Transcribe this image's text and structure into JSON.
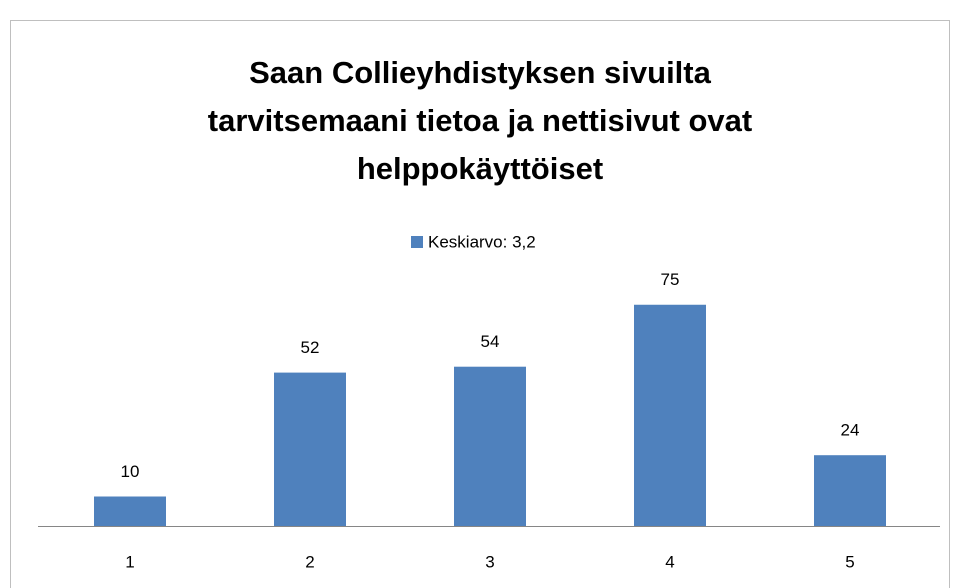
{
  "chart_data": {
    "type": "bar",
    "title": [
      "Saan Collieyhdistyksen  sivuilta",
      "tarvitsemaani tietoa ja nettisivut ovat",
      "helppokäyttöiset"
    ],
    "categories": [
      "1",
      "2",
      "3",
      "4",
      "5"
    ],
    "series": [
      {
        "name": "Keskiarvo: 3,2",
        "color": "#4f81bd",
        "values": [
          10,
          52,
          54,
          75,
          24
        ]
      }
    ],
    "ylim": [
      0,
      80
    ],
    "legend": "top"
  }
}
